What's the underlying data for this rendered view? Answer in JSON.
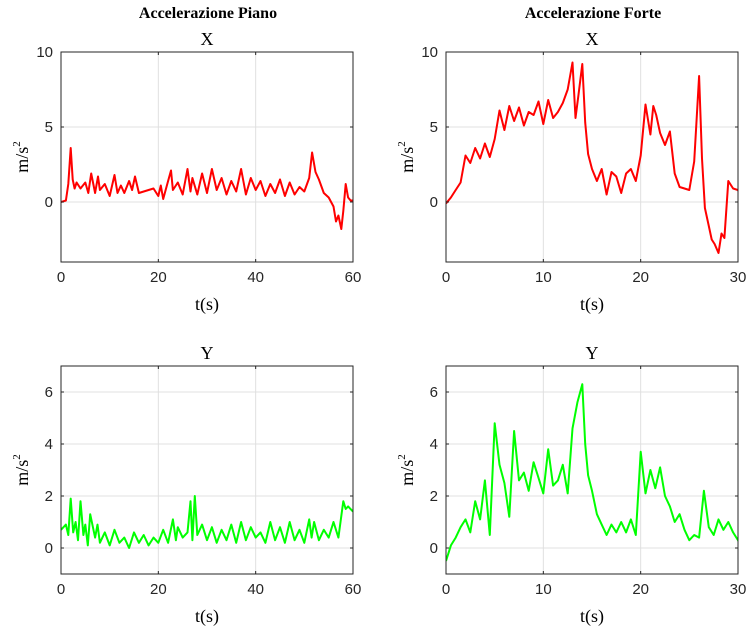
{
  "columns": {
    "left_title": "Accelerazione Piano",
    "right_title": "Accelerazione Forte"
  },
  "chart_data": [
    {
      "id": "piano-x",
      "type": "line",
      "title": "X",
      "xlabel": "t(s)",
      "ylabel_base": "m/s",
      "ylabel_sup": "2",
      "xlim": [
        0,
        60
      ],
      "ylim": [
        -4,
        10
      ],
      "xticks": [
        0,
        20,
        40,
        60
      ],
      "yticks": [
        0,
        5,
        10
      ],
      "grid": true,
      "color": "#ff0000",
      "series": [
        {
          "x": [
            0,
            1,
            1.5,
            2,
            2.4,
            2.8,
            3.2,
            4,
            5,
            5.6,
            6.2,
            7,
            7.6,
            8,
            9,
            10,
            11,
            11.6,
            12.3,
            13,
            14,
            14.6,
            15.2,
            16,
            18,
            19,
            20,
            20.5,
            21,
            22,
            22.6,
            23,
            24,
            25,
            26,
            26.6,
            27,
            28,
            29,
            30,
            31,
            32,
            33,
            34,
            35,
            36,
            37,
            38,
            39,
            40,
            41,
            42,
            43,
            44,
            45,
            46,
            47,
            48,
            49,
            50,
            51,
            51.6,
            52.3,
            53,
            54,
            55,
            56,
            56.5,
            57,
            57.6,
            58,
            58.5,
            59,
            59.5,
            60
          ],
          "y": [
            0,
            0.1,
            1.2,
            3.6,
            1.5,
            0.9,
            1.3,
            0.9,
            1.3,
            0.6,
            1.9,
            0.6,
            1.7,
            0.8,
            1.2,
            0.4,
            1.8,
            0.6,
            1.1,
            0.6,
            1.4,
            0.8,
            1.7,
            0.6,
            0.8,
            0.9,
            0.4,
            1.1,
            0.2,
            1.4,
            2.1,
            0.8,
            1.3,
            0.5,
            2.2,
            0.7,
            1.6,
            0.5,
            1.9,
            0.6,
            2.2,
            0.8,
            1.6,
            0.5,
            1.4,
            0.7,
            2.2,
            0.5,
            1.6,
            0.8,
            1.4,
            0.4,
            1.2,
            0.6,
            1.5,
            0.4,
            1.3,
            0.5,
            1.0,
            0.7,
            1.6,
            3.3,
            2.0,
            1.5,
            0.6,
            0.3,
            -0.3,
            -1.3,
            -0.9,
            -1.8,
            -0.6,
            1.2,
            0.3,
            0.1,
            0.1
          ]
        }
      ]
    },
    {
      "id": "forte-x",
      "type": "line",
      "title": "X",
      "xlabel": "t(s)",
      "ylabel_base": "m/s",
      "ylabel_sup": "2",
      "xlim": [
        0,
        30
      ],
      "ylim": [
        -4,
        10
      ],
      "xticks": [
        0,
        10,
        20,
        30
      ],
      "yticks": [
        0,
        5,
        10
      ],
      "grid": true,
      "color": "#ff0000",
      "series": [
        {
          "x": [
            0,
            0.5,
            1,
            1.5,
            2,
            2.5,
            3,
            3.5,
            4,
            4.5,
            5,
            5.5,
            6,
            6.5,
            7,
            7.5,
            8,
            8.5,
            9,
            9.5,
            10,
            10.5,
            11,
            11.5,
            12,
            12.5,
            13,
            13.3,
            13.6,
            14,
            14.3,
            14.6,
            15,
            15.5,
            16,
            16.5,
            17,
            17.5,
            18,
            18.5,
            19,
            19.5,
            20,
            20.5,
            21,
            21.3,
            21.6,
            22,
            22.5,
            23,
            23.5,
            24,
            24.5,
            25,
            25.5,
            26,
            26.3,
            26.6,
            27,
            27.3,
            27.6,
            28,
            28.3,
            28.6,
            29,
            29.5,
            30,
            30.4
          ],
          "y": [
            -0.1,
            0.3,
            0.8,
            1.3,
            3.1,
            2.6,
            3.6,
            2.9,
            3.9,
            3.0,
            4.2,
            6.1,
            4.8,
            6.4,
            5.4,
            6.3,
            5.1,
            6.0,
            5.8,
            6.7,
            5.2,
            6.8,
            5.6,
            6.0,
            6.6,
            7.5,
            9.3,
            5.6,
            7.1,
            9.2,
            5.3,
            3.2,
            2.2,
            1.4,
            2.2,
            0.5,
            2.0,
            1.7,
            0.6,
            1.9,
            2.2,
            1.4,
            3.1,
            6.5,
            4.5,
            6.4,
            5.8,
            4.6,
            3.8,
            4.7,
            1.9,
            1.0,
            0.9,
            0.8,
            2.7,
            8.4,
            2.9,
            -0.4,
            -1.6,
            -2.5,
            -2.8,
            -3.4,
            -2.1,
            -2.4,
            1.4,
            0.9,
            0.8,
            0.0
          ]
        }
      ]
    },
    {
      "id": "piano-y",
      "type": "line",
      "title": "Y",
      "xlabel": "t(s)",
      "ylabel_base": "m/s",
      "ylabel_sup": "2",
      "xlim": [
        0,
        60
      ],
      "ylim": [
        -1,
        7
      ],
      "xticks": [
        0,
        20,
        40,
        60
      ],
      "yticks": [
        0,
        2,
        4,
        6
      ],
      "grid": true,
      "color": "#00ff00",
      "series": [
        {
          "x": [
            0,
            1,
            1.5,
            2,
            2.5,
            3,
            3.5,
            4,
            4.6,
            5,
            5.5,
            6,
            7,
            7.5,
            8,
            9,
            10,
            11,
            12,
            13,
            14,
            15,
            16,
            17,
            18,
            19,
            20,
            21,
            22,
            23,
            23.6,
            24,
            25,
            26,
            26.6,
            27,
            27.5,
            28,
            29,
            30,
            31,
            32,
            33,
            34,
            35,
            36,
            37,
            38,
            39,
            40,
            41,
            42,
            43,
            44,
            45,
            46,
            47,
            48,
            49,
            50,
            51,
            51.5,
            52,
            53,
            54,
            55,
            56,
            57,
            58,
            58.5,
            59,
            60
          ],
          "y": [
            0.7,
            0.9,
            0.5,
            1.9,
            0.6,
            1.0,
            0.3,
            1.8,
            0.5,
            0.9,
            0.1,
            1.3,
            0.4,
            0.9,
            0.2,
            0.6,
            0.1,
            0.7,
            0.2,
            0.4,
            0.0,
            0.6,
            0.2,
            0.5,
            0.1,
            0.4,
            0.2,
            0.7,
            0.2,
            1.1,
            0.3,
            0.8,
            0.4,
            0.6,
            1.8,
            0.3,
            2.0,
            0.5,
            0.9,
            0.3,
            0.8,
            0.2,
            0.7,
            0.3,
            0.9,
            0.2,
            1.0,
            0.3,
            0.8,
            0.4,
            0.6,
            0.2,
            1.0,
            0.3,
            0.8,
            0.2,
            1.0,
            0.3,
            0.7,
            0.2,
            1.1,
            0.4,
            1.0,
            0.3,
            0.7,
            0.4,
            1.0,
            0.4,
            1.8,
            1.5,
            1.6,
            1.4
          ]
        }
      ]
    },
    {
      "id": "forte-y",
      "type": "line",
      "title": "Y",
      "xlabel": "t(s)",
      "ylabel_base": "m/s",
      "ylabel_sup": "2",
      "xlim": [
        0,
        30
      ],
      "ylim": [
        -1,
        7
      ],
      "xticks": [
        0,
        10,
        20,
        30
      ],
      "yticks": [
        0,
        2,
        4,
        6
      ],
      "grid": true,
      "color": "#00ff00",
      "series": [
        {
          "x": [
            0,
            0.5,
            1,
            1.5,
            2,
            2.5,
            3,
            3.5,
            4,
            4.5,
            5,
            5.5,
            6,
            6.5,
            7,
            7.5,
            8,
            8.5,
            9,
            9.5,
            10,
            10.5,
            11,
            11.5,
            12,
            12.5,
            13,
            13.5,
            14,
            14.3,
            14.6,
            15,
            15.5,
            16,
            16.5,
            17,
            17.5,
            18,
            18.5,
            19,
            19.5,
            20,
            20.5,
            21,
            21.5,
            22,
            22.5,
            23,
            23.5,
            24,
            24.5,
            25,
            25.5,
            26,
            26.5,
            27,
            27.5,
            28,
            28.5,
            29,
            29.5,
            30,
            30.4
          ],
          "y": [
            -0.5,
            0.1,
            0.4,
            0.8,
            1.1,
            0.6,
            1.8,
            1.1,
            2.6,
            0.5,
            4.8,
            3.2,
            2.5,
            1.2,
            4.5,
            2.6,
            2.9,
            2.2,
            3.3,
            2.7,
            2.1,
            3.8,
            2.4,
            2.6,
            3.2,
            2.1,
            4.6,
            5.6,
            6.3,
            4.0,
            2.8,
            2.2,
            1.3,
            0.9,
            0.5,
            0.9,
            0.6,
            1.0,
            0.6,
            1.1,
            0.5,
            3.7,
            2.1,
            3.0,
            2.3,
            3.1,
            2.0,
            1.6,
            1.0,
            1.3,
            0.7,
            0.3,
            0.5,
            0.4,
            2.2,
            0.8,
            0.5,
            1.1,
            0.7,
            1.0,
            0.6,
            0.3,
            -0.1
          ]
        }
      ]
    }
  ]
}
